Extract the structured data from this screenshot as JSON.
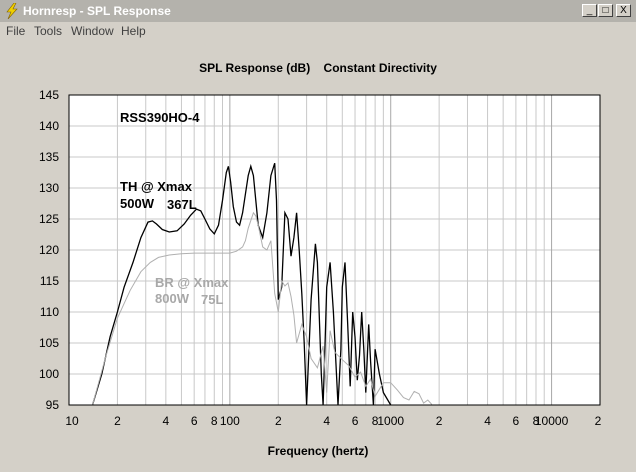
{
  "window": {
    "title": "Hornresp - SPL Response",
    "buttons": {
      "minimize": "_",
      "maximize": "□",
      "close": "X"
    }
  },
  "menu": [
    "File",
    "Tools",
    "Window",
    "Help"
  ],
  "colors": {
    "th_trace": "#000000",
    "br_trace": "#b0b0b0",
    "grid": "#c8c8c8",
    "plot_bg": "#ffffff"
  },
  "chart_data": {
    "type": "line",
    "title": "SPL Response (dB)    Constant Directivity",
    "xlabel": "Frequency (hertz)",
    "ylabel": "",
    "x_scale": "log",
    "xlim": [
      10,
      20000
    ],
    "ylim": [
      95,
      145
    ],
    "x_tick_labels": [
      "10",
      "2",
      "4",
      "6",
      "8",
      "100",
      "2",
      "4",
      "6",
      "8",
      "1000",
      "2",
      "4",
      "6",
      "8",
      "10000",
      "2"
    ],
    "y_ticks": [
      95,
      100,
      105,
      110,
      115,
      120,
      125,
      130,
      135,
      140,
      145
    ],
    "grid": true,
    "annotations": {
      "model": "RSS390HO-4",
      "th_label": "TH @ Xmax",
      "th_power": "500W",
      "th_volume": "367L",
      "br_label": "BR @ Xmax",
      "br_power": "800W",
      "br_volume": "75L"
    },
    "series": [
      {
        "key": "th",
        "x": [
          14,
          16,
          18,
          20,
          22,
          25,
          28,
          31,
          33,
          35,
          38,
          42,
          47,
          52,
          57,
          62,
          66,
          70,
          75,
          80,
          85,
          90,
          95,
          98,
          101,
          105,
          110,
          115,
          120,
          125,
          130,
          135,
          140,
          145,
          150,
          160,
          170,
          180,
          190,
          195,
          200,
          210,
          215,
          220,
          230,
          240,
          250,
          260,
          270,
          280,
          290,
          300,
          320,
          340,
          350,
          370,
          380,
          390,
          400,
          420,
          440,
          470,
          490,
          500,
          520,
          540,
          560,
          580,
          600,
          620,
          640,
          660,
          680,
          700,
          730,
          750,
          780,
          800,
          850,
          900,
          1000
        ],
        "y": [
          95,
          100,
          106,
          110,
          114,
          118,
          122,
          124.5,
          124.7,
          124.2,
          123.3,
          122.9,
          123.1,
          124.2,
          125.6,
          126.6,
          126.3,
          125,
          123.4,
          122.6,
          124,
          128,
          132.5,
          133.5,
          131,
          127,
          124.5,
          124,
          126,
          129,
          132,
          133.5,
          132,
          128,
          124,
          122,
          126,
          132,
          134,
          128,
          112,
          114,
          120,
          126,
          125,
          119,
          122,
          126,
          120,
          113,
          105,
          95,
          112,
          121,
          118,
          100,
          95,
          104,
          114,
          118,
          110,
          95,
          104,
          114,
          118,
          108,
          98,
          110,
          106,
          99,
          103,
          110,
          104,
          97,
          108,
          102,
          95,
          104,
          100,
          97,
          95
        ]
      },
      {
        "key": "br",
        "x": [
          14,
          17,
          20,
          24,
          28,
          32,
          36,
          42,
          50,
          60,
          70,
          80,
          90,
          100,
          110,
          120,
          125,
          130,
          140,
          145,
          150,
          160,
          170,
          180,
          190,
          200,
          210,
          220,
          230,
          240,
          250,
          260,
          280,
          300,
          320,
          350,
          380,
          400,
          420,
          450,
          500,
          550,
          600,
          650,
          700,
          750,
          800,
          900,
          1000,
          1100,
          1200,
          1300,
          1400,
          1500,
          1600,
          1700,
          1800
        ],
        "y": [
          95,
          103,
          109,
          113.5,
          116.5,
          118,
          118.8,
          119.2,
          119.4,
          119.5,
          119.5,
          119.5,
          119.5,
          119.5,
          119.8,
          120.5,
          121.5,
          123.5,
          126,
          125.5,
          124,
          120.5,
          120,
          121.5,
          113,
          110,
          115,
          114.2,
          114.7,
          112.5,
          109.5,
          105,
          108,
          106,
          102.5,
          101,
          104.5,
          97,
          107,
          103.5,
          102.3,
          101.3,
          99.5,
          100.3,
          98,
          99.2,
          96.4,
          98.6,
          98.6,
          97.4,
          96.2,
          95.8,
          97.2,
          96.8,
          95.3,
          95.8,
          95.1
        ]
      }
    ]
  }
}
